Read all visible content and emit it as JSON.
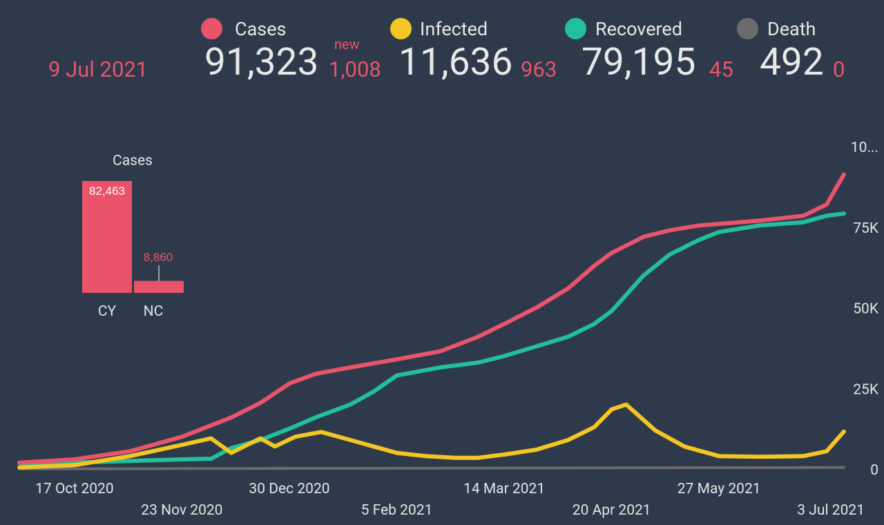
{
  "header": {
    "date": "9 Jul 2021",
    "new_label": "new",
    "stats": [
      {
        "label": "Cases",
        "value": "91,323",
        "delta": "1,008",
        "color": "#e9546b"
      },
      {
        "label": "Infected",
        "value": "11,636",
        "delta": "963",
        "color": "#f3c623"
      },
      {
        "label": "Recovered",
        "value": "79,195",
        "delta": "45",
        "color": "#21bf9c"
      },
      {
        "label": "Death",
        "value": "492",
        "delta": "0",
        "color": "#6b6b6b"
      }
    ]
  },
  "chart_data": [
    {
      "type": "line",
      "x_tick_labels": [
        "17 Oct 2020",
        "23 Nov 2020",
        "30 Dec 2020",
        "5 Feb 2021",
        "14 Mar 2021",
        "20 Apr 2021",
        "27 May 2021",
        "3 Jul 2021"
      ],
      "y_tick_labels": [
        "0",
        "25K",
        "50K",
        "75K",
        "10..."
      ],
      "ylim": [
        0,
        100000
      ],
      "grid": false,
      "series": [
        {
          "name": "Cases",
          "color": "#e9546b",
          "x": [
            "2020-09-28",
            "2020-10-17",
            "2020-11-05",
            "2020-11-23",
            "2020-12-10",
            "2020-12-20",
            "2020-12-30",
            "2021-01-08",
            "2021-01-20",
            "2021-02-05",
            "2021-02-20",
            "2021-03-05",
            "2021-03-14",
            "2021-03-25",
            "2021-04-05",
            "2021-04-14",
            "2021-04-20",
            "2021-05-01",
            "2021-05-10",
            "2021-05-20",
            "2021-05-27",
            "2021-06-10",
            "2021-06-25",
            "2021-07-03",
            "2021-07-09"
          ],
          "values": [
            2000,
            3000,
            5500,
            10000,
            16000,
            20500,
            26500,
            29500,
            31500,
            34000,
            36500,
            41000,
            45000,
            50000,
            56000,
            63000,
            67000,
            72000,
            74000,
            75500,
            76000,
            77000,
            78500,
            82000,
            91323
          ]
        },
        {
          "name": "Infected",
          "color": "#f3c623",
          "x": [
            "2020-09-28",
            "2020-10-17",
            "2020-11-05",
            "2020-11-23",
            "2020-12-03",
            "2020-12-10",
            "2020-12-20",
            "2020-12-25",
            "2021-01-01",
            "2021-01-10",
            "2021-01-20",
            "2021-01-28",
            "2021-02-05",
            "2021-02-15",
            "2021-02-25",
            "2021-03-05",
            "2021-03-14",
            "2021-03-25",
            "2021-04-05",
            "2021-04-14",
            "2021-04-20",
            "2021-04-25",
            "2021-05-05",
            "2021-05-15",
            "2021-05-27",
            "2021-06-10",
            "2021-06-25",
            "2021-07-03",
            "2021-07-09"
          ],
          "values": [
            500,
            1200,
            4000,
            7500,
            9500,
            5000,
            9500,
            7000,
            10000,
            11500,
            9000,
            7000,
            5000,
            4000,
            3500,
            3500,
            4500,
            6000,
            9000,
            13000,
            18500,
            20000,
            12000,
            7000,
            4000,
            3800,
            4000,
            5500,
            11636
          ]
        },
        {
          "name": "Recovered",
          "color": "#21bf9c",
          "x": [
            "2020-09-28",
            "2020-10-17",
            "2020-11-05",
            "2020-11-23",
            "2020-12-03",
            "2020-12-10",
            "2020-12-20",
            "2020-12-30",
            "2021-01-08",
            "2021-01-20",
            "2021-01-28",
            "2021-02-05",
            "2021-02-20",
            "2021-03-05",
            "2021-03-14",
            "2021-03-25",
            "2021-04-05",
            "2021-04-14",
            "2021-04-20",
            "2021-05-01",
            "2021-05-10",
            "2021-05-20",
            "2021-05-27",
            "2021-06-10",
            "2021-06-25",
            "2021-07-03",
            "2021-07-09"
          ],
          "values": [
            1800,
            2000,
            2500,
            3000,
            3200,
            6500,
            9000,
            12500,
            16000,
            20000,
            24000,
            29000,
            31500,
            33000,
            35000,
            38000,
            41000,
            45000,
            49000,
            60000,
            66500,
            71000,
            73500,
            75500,
            76500,
            78500,
            79195
          ]
        },
        {
          "name": "Death",
          "color": "#6b6b6b",
          "x": [
            "2020-09-28",
            "2021-07-09"
          ],
          "values": [
            40,
            492
          ]
        }
      ]
    },
    {
      "type": "bar",
      "title": "Cases",
      "categories": [
        "CY",
        "NC"
      ],
      "values": [
        82463,
        8860
      ],
      "value_labels": [
        "82,463",
        "8,860"
      ],
      "color": "#e9546b"
    }
  ]
}
